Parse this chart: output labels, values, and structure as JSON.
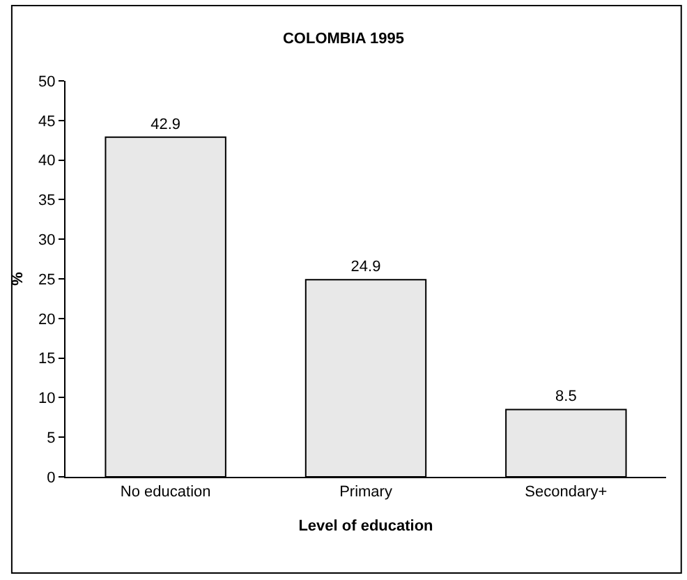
{
  "chart_data": {
    "type": "bar",
    "title": "COLOMBIA 1995",
    "xlabel": "Level of education",
    "ylabel": "%",
    "categories": [
      "No education",
      "Primary",
      "Secondary+"
    ],
    "values": [
      42.9,
      24.9,
      8.5
    ],
    "color": "#e8e8e8",
    "ylim": [
      0,
      50
    ],
    "yticks": [
      0,
      5,
      10,
      15,
      20,
      25,
      30,
      35,
      40,
      45,
      50
    ],
    "grid": false,
    "data_labels": true
  }
}
